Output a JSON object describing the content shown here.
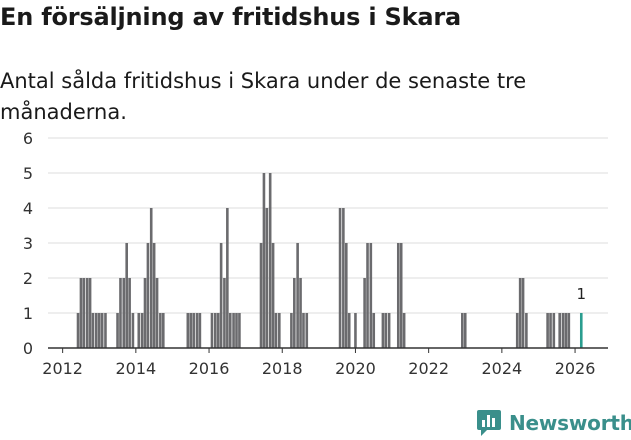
{
  "header": {
    "title": "En försäljning av fritidshus i Skara",
    "subtitle": "Antal sålda fritidshus i Skara under de senaste tre månaderna."
  },
  "brand": {
    "name": "Newsworthy",
    "icon": "chart-bubble-icon",
    "color": "#3a8f8b"
  },
  "colors": {
    "bar": "#6b6b6e",
    "highlight": "#2a9d8f",
    "grid": "#dcdcdc",
    "axis": "#333333"
  },
  "chart_data": {
    "type": "bar",
    "title": "En försäljning av fritidshus i Skara",
    "subtitle": "Antal sålda fritidshus i Skara under de senaste tre månaderna.",
    "xlabel": "",
    "ylabel": "",
    "xlim": [
      2011.6,
      2026.9
    ],
    "ylim": [
      0,
      6
    ],
    "yticks": [
      0,
      1,
      2,
      3,
      4,
      5,
      6
    ],
    "xticks": [
      2012,
      2014,
      2016,
      2018,
      2020,
      2022,
      2024,
      2026
    ],
    "grid": true,
    "highlight_label": "1",
    "x": [
      2012.42,
      2012.5,
      2012.58,
      2012.67,
      2012.75,
      2012.83,
      2012.92,
      2013.0,
      2013.08,
      2013.17,
      2013.5,
      2013.58,
      2013.67,
      2013.75,
      2013.83,
      2013.92,
      2014.08,
      2014.17,
      2014.25,
      2014.33,
      2014.42,
      2014.5,
      2014.58,
      2014.67,
      2014.75,
      2015.42,
      2015.5,
      2015.58,
      2015.67,
      2015.75,
      2016.08,
      2016.17,
      2016.25,
      2016.33,
      2016.42,
      2016.5,
      2016.58,
      2016.67,
      2016.75,
      2016.83,
      2017.42,
      2017.5,
      2017.58,
      2017.67,
      2017.75,
      2017.83,
      2017.92,
      2018.25,
      2018.33,
      2018.42,
      2018.5,
      2018.58,
      2018.67,
      2019.58,
      2019.67,
      2019.75,
      2019.83,
      2020.0,
      2020.25,
      2020.33,
      2020.42,
      2020.5,
      2020.75,
      2020.83,
      2020.92,
      2021.17,
      2021.25,
      2021.33,
      2022.92,
      2023.0,
      2024.42,
      2024.5,
      2024.58,
      2024.67,
      2025.25,
      2025.33,
      2025.42,
      2025.58,
      2025.67,
      2025.75,
      2025.83,
      2026.17
    ],
    "values": [
      1,
      2,
      2,
      2,
      2,
      1,
      1,
      1,
      1,
      1,
      1,
      2,
      2,
      3,
      2,
      1,
      1,
      1,
      2,
      3,
      4,
      3,
      2,
      1,
      1,
      1,
      1,
      1,
      1,
      1,
      1,
      1,
      1,
      3,
      2,
      4,
      1,
      1,
      1,
      1,
      3,
      5,
      4,
      5,
      3,
      1,
      1,
      1,
      2,
      3,
      2,
      1,
      1,
      4,
      4,
      3,
      1,
      1,
      2,
      3,
      3,
      1,
      1,
      1,
      1,
      3,
      3,
      1,
      1,
      1,
      1,
      2,
      2,
      1,
      1,
      1,
      1,
      1,
      1,
      1,
      1,
      1
    ],
    "highlight_index": 81
  }
}
